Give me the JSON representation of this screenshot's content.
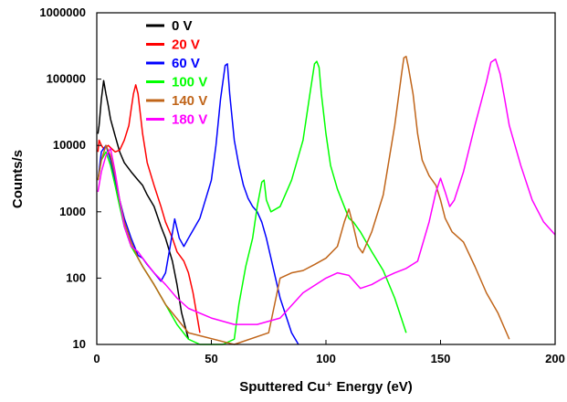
{
  "chart_data": {
    "type": "line",
    "xlabel": "Sputtered Cu⁺ Energy (eV)",
    "ylabel": "Counts/s",
    "xlim": [
      0,
      200
    ],
    "ylim": [
      10,
      1000000
    ],
    "yscale": "log",
    "x_ticks": [
      0,
      50,
      100,
      150,
      200
    ],
    "x_tick_labels": [
      "0",
      "50",
      "100",
      "150",
      "200"
    ],
    "y_ticks": [
      10,
      100,
      1000,
      10000,
      100000,
      1000000
    ],
    "y_tick_labels": [
      "10",
      "100",
      "1000",
      "10000",
      "100000",
      "1000000"
    ],
    "grid": false,
    "legend_position": "top-left",
    "series": [
      {
        "name": "0 V",
        "color": "#000000",
        "x": [
          0.5,
          1,
          2,
          3,
          4,
          5,
          6,
          8,
          10,
          12,
          15,
          18,
          20,
          22,
          25,
          28,
          30,
          33,
          35,
          37,
          40
        ],
        "y": [
          15000,
          20000,
          50000,
          95000,
          60000,
          40000,
          25000,
          14000,
          8000,
          5500,
          4000,
          3000,
          2500,
          1800,
          1200,
          600,
          400,
          180,
          80,
          30,
          12
        ]
      },
      {
        "name": "20 V",
        "color": "#ff0000",
        "x": [
          0.5,
          1,
          2,
          3,
          5,
          8,
          10,
          12,
          14,
          15,
          16,
          17,
          18,
          19,
          20,
          22,
          25,
          28,
          30,
          33,
          35,
          38,
          40,
          42,
          45
        ],
        "y": [
          8000,
          12000,
          10000,
          9000,
          10000,
          8000,
          8500,
          12000,
          20000,
          35000,
          60000,
          82000,
          60000,
          30000,
          15000,
          5500,
          2500,
          1200,
          700,
          400,
          250,
          180,
          120,
          60,
          15
        ]
      },
      {
        "name": "60 V",
        "color": "#0000ff",
        "x": [
          0.5,
          2,
          4,
          6,
          8,
          10,
          12,
          15,
          18,
          20,
          22,
          25,
          28,
          30,
          32,
          34,
          36,
          38,
          40,
          45,
          50,
          52,
          54,
          56,
          57,
          58,
          60,
          62,
          64,
          66,
          68,
          70,
          72,
          74,
          76,
          78,
          80,
          85,
          88
        ],
        "y": [
          3000,
          8000,
          10000,
          6000,
          3000,
          1500,
          800,
          400,
          220,
          200,
          160,
          120,
          90,
          120,
          300,
          780,
          400,
          300,
          400,
          800,
          3000,
          10000,
          50000,
          160000,
          170000,
          60000,
          12000,
          5000,
          2500,
          1600,
          1200,
          1000,
          700,
          400,
          200,
          100,
          50,
          15,
          10
        ]
      },
      {
        "name": "100 V",
        "color": "#00ff00",
        "x": [
          0.5,
          2,
          4,
          6,
          8,
          10,
          12,
          15,
          18,
          20,
          25,
          30,
          35,
          40,
          45,
          50,
          55,
          60,
          62,
          65,
          68,
          70,
          72,
          73,
          74,
          76,
          80,
          85,
          90,
          93,
          95,
          96,
          97,
          98,
          100,
          102,
          105,
          108,
          110,
          112,
          115,
          120,
          125,
          130,
          135
        ],
        "y": [
          3000,
          6000,
          8000,
          5000,
          2500,
          1200,
          600,
          300,
          200,
          150,
          80,
          40,
          20,
          12,
          10,
          10,
          10,
          12,
          40,
          150,
          400,
          1200,
          2800,
          3000,
          1500,
          1000,
          1200,
          3000,
          12000,
          60000,
          170000,
          185000,
          150000,
          60000,
          15000,
          5000,
          2200,
          1200,
          800,
          700,
          500,
          250,
          130,
          50,
          15
        ]
      },
      {
        "name": "140 V",
        "color": "#c0651a",
        "x": [
          0.5,
          2,
          4,
          6,
          8,
          10,
          12,
          15,
          18,
          20,
          25,
          30,
          40,
          60,
          75,
          80,
          85,
          90,
          95,
          100,
          105,
          108,
          110,
          112,
          114,
          116,
          120,
          125,
          130,
          133,
          134,
          135,
          136,
          138,
          140,
          142,
          145,
          148,
          150,
          152,
          155,
          160,
          165,
          170,
          175,
          180
        ],
        "y": [
          3000,
          6000,
          10000,
          7000,
          3500,
          1500,
          700,
          350,
          200,
          150,
          80,
          40,
          15,
          10,
          15,
          100,
          120,
          130,
          160,
          200,
          300,
          700,
          1100,
          600,
          300,
          240,
          500,
          1800,
          20000,
          120000,
          210000,
          220000,
          150000,
          60000,
          15000,
          6000,
          3500,
          2500,
          1500,
          800,
          500,
          350,
          150,
          60,
          30,
          12
        ]
      },
      {
        "name": "180 V",
        "color": "#ff00ff",
        "x": [
          0.5,
          2,
          4,
          6,
          8,
          10,
          12,
          15,
          18,
          20,
          25,
          30,
          35,
          40,
          50,
          60,
          70,
          80,
          90,
          100,
          105,
          110,
          115,
          120,
          125,
          130,
          135,
          140,
          145,
          148,
          150,
          152,
          154,
          156,
          160,
          165,
          170,
          172,
          174,
          176,
          178,
          180,
          185,
          190,
          195,
          200
        ],
        "y": [
          2000,
          4000,
          7000,
          9000,
          4000,
          1500,
          600,
          300,
          250,
          200,
          120,
          80,
          50,
          35,
          25,
          20,
          20,
          25,
          60,
          100,
          120,
          110,
          70,
          80,
          100,
          120,
          140,
          180,
          700,
          2000,
          3200,
          2000,
          1200,
          1500,
          4000,
          20000,
          90000,
          180000,
          200000,
          120000,
          50000,
          20000,
          5000,
          1500,
          700,
          450
        ]
      }
    ]
  }
}
